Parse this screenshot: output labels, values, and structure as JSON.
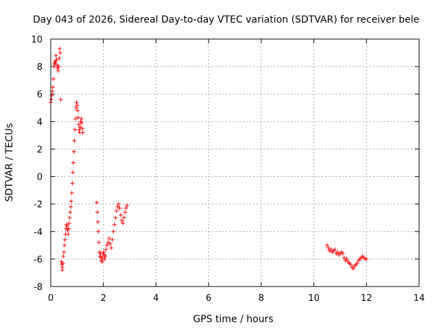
{
  "chart_data": {
    "type": "scatter",
    "title": "Day 043 of 2026, Sidereal Day-to-day VTEC variation (SDTVAR) for receiver bele",
    "xlabel": "GPS time / hours",
    "ylabel": "SDTVAR / TECUs",
    "xlim": [
      0,
      14
    ],
    "ylim": [
      -8,
      10
    ],
    "xticks": [
      0,
      2,
      4,
      6,
      8,
      10,
      12,
      14
    ],
    "yticks": [
      -8,
      -6,
      -4,
      -2,
      0,
      2,
      4,
      6,
      8,
      10
    ],
    "xtick_labels": [
      "0",
      "2",
      "4",
      "6",
      "8",
      "10",
      "12",
      "14"
    ],
    "ytick_labels": [
      "-8",
      "-6",
      "-4",
      "-2",
      "0",
      "2",
      "4",
      "6",
      "8",
      "10"
    ],
    "grid": true,
    "marker": "plus",
    "color": "#ff0000",
    "series": [
      {
        "name": "SDTVAR",
        "x": [
          0.0,
          0.02,
          0.04,
          0.06,
          0.08,
          0.1,
          0.12,
          0.14,
          0.16,
          0.18,
          0.2,
          0.22,
          0.24,
          0.26,
          0.28,
          0.3,
          0.32,
          0.34,
          0.36,
          0.38,
          0.4,
          0.42,
          0.44,
          0.44,
          0.46,
          0.48,
          0.5,
          0.52,
          0.54,
          0.56,
          0.58,
          0.6,
          0.62,
          0.64,
          0.66,
          0.68,
          0.7,
          0.72,
          0.74,
          0.76,
          0.78,
          0.8,
          0.82,
          0.84,
          0.86,
          0.88,
          0.9,
          0.92,
          0.94,
          0.96,
          0.98,
          1.0,
          1.02,
          1.04,
          1.06,
          1.08,
          1.1,
          1.12,
          1.14,
          1.16,
          1.18,
          1.2,
          1.22,
          1.75,
          1.77,
          1.79,
          1.81,
          1.83,
          1.85,
          1.87,
          1.89,
          1.91,
          1.93,
          1.95,
          1.97,
          1.99,
          2.01,
          2.03,
          2.05,
          2.07,
          2.1,
          2.14,
          2.18,
          2.22,
          2.26,
          2.3,
          2.34,
          2.38,
          2.42,
          2.46,
          2.5,
          2.54,
          2.58,
          2.62,
          2.66,
          2.7,
          2.74,
          2.78,
          2.82,
          2.86,
          2.9,
          10.5,
          10.55,
          10.6,
          10.65,
          10.7,
          10.75,
          10.8,
          10.85,
          10.9,
          10.95,
          11.0,
          11.05,
          11.1,
          11.15,
          11.2,
          11.25,
          11.3,
          11.35,
          11.4,
          11.45,
          11.5,
          11.55,
          11.6,
          11.65,
          11.7,
          11.75,
          11.8,
          11.85,
          11.9,
          11.95,
          12.0
        ],
        "y": [
          5.4,
          5.6,
          5.9,
          6.2,
          6.5,
          7.1,
          8.0,
          8.2,
          8.3,
          8.4,
          8.8,
          8.5,
          8.1,
          7.9,
          7.7,
          8.0,
          8.6,
          9.3,
          9.0,
          5.6,
          -6.2,
          -6.4,
          -6.6,
          -6.8,
          -6.3,
          -5.8,
          -5.5,
          -5.0,
          -4.6,
          -4.2,
          -3.8,
          -3.5,
          -3.6,
          -3.9,
          -4.2,
          -3.8,
          -3.4,
          -3.0,
          -2.6,
          -2.2,
          -1.8,
          -1.2,
          -0.5,
          0.3,
          1.0,
          1.8,
          2.6,
          3.4,
          4.2,
          5.0,
          5.4,
          5.2,
          4.8,
          4.3,
          3.8,
          3.4,
          3.2,
          3.6,
          4.0,
          4.2,
          3.9,
          3.5,
          3.2,
          -1.9,
          -2.6,
          -3.3,
          -4.0,
          -4.8,
          -5.5,
          -5.8,
          -5.6,
          -5.9,
          -6.1,
          -6.2,
          -5.9,
          -5.6,
          -5.5,
          -5.7,
          -6.0,
          -5.8,
          -5.3,
          -5.0,
          -4.8,
          -4.5,
          -4.9,
          -5.2,
          -4.6,
          -4.0,
          -3.5,
          -3.0,
          -2.5,
          -2.2,
          -2.0,
          -2.3,
          -2.8,
          -3.2,
          -3.4,
          -3.0,
          -2.6,
          -2.3,
          -2.1,
          -5.0,
          -5.2,
          -5.4,
          -5.3,
          -5.5,
          -5.4,
          -5.3,
          -5.6,
          -5.5,
          -5.7,
          -5.6,
          -5.5,
          -5.6,
          -5.9,
          -6.1,
          -6.0,
          -6.2,
          -6.3,
          -6.4,
          -6.6,
          -6.7,
          -6.5,
          -6.4,
          -6.3,
          -6.1,
          -6.0,
          -5.9,
          -5.8,
          -5.9,
          -6.0,
          -6.0
        ]
      }
    ]
  }
}
